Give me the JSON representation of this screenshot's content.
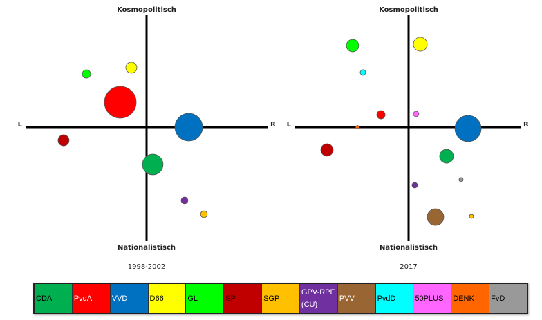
{
  "chart_data": [
    {
      "type": "scatter",
      "subtitle": "1998-2002",
      "axis_labels": {
        "top": "Kosmopolitisch",
        "bottom": "Nationalistisch",
        "left": "L",
        "right": "R"
      },
      "xlim": [
        -10,
        10
      ],
      "ylim": [
        -10,
        10
      ],
      "grid": false,
      "points": [
        {
          "party": "GL",
          "x": -4.97,
          "y": 4.72,
          "size": 9
        },
        {
          "party": "D66",
          "x": -1.26,
          "y": 5.28,
          "size": 16
        },
        {
          "party": "PvdA",
          "x": -2.17,
          "y": 2.21,
          "size": 132
        },
        {
          "party": "VVD",
          "x": 3.49,
          "y": 0,
          "size": 100
        },
        {
          "party": "SP",
          "x": -6.86,
          "y": -1.17,
          "size": 16
        },
        {
          "party": "CDA",
          "x": 0.51,
          "y": -3.31,
          "size": 56
        },
        {
          "party": "GPV-RPF (CU)",
          "x": 3.14,
          "y": -6.5,
          "size": 6
        },
        {
          "party": "SGP",
          "x": 4.74,
          "y": -7.73,
          "size": 6
        }
      ]
    },
    {
      "type": "scatter",
      "subtitle": "2017",
      "axis_labels": {
        "top": "Kosmopolitisch",
        "bottom": "Nationalistisch",
        "left": "L",
        "right": "R"
      },
      "xlim": [
        -10,
        10
      ],
      "ylim": [
        -10,
        10
      ],
      "grid": false,
      "points": [
        {
          "party": "GL",
          "x": -4.97,
          "y": 7.24,
          "size": 20
        },
        {
          "party": "D66",
          "x": 1.04,
          "y": 7.36,
          "size": 25
        },
        {
          "party": "PvdD",
          "x": -4.05,
          "y": 4.85,
          "size": 4
        },
        {
          "party": "PvdA",
          "x": -2.45,
          "y": 1.1,
          "size": 9
        },
        {
          "party": "50PLUS",
          "x": 0.67,
          "y": 1.17,
          "size": 4
        },
        {
          "party": "DENK",
          "x": -4.54,
          "y": 0,
          "size": 1.5
        },
        {
          "party": "VVD",
          "x": 5.28,
          "y": -0.12,
          "size": 90
        },
        {
          "party": "SP",
          "x": -7.24,
          "y": -2.02,
          "size": 20
        },
        {
          "party": "CDA",
          "x": 3.37,
          "y": -2.58,
          "size": 25
        },
        {
          "party": "FvD",
          "x": 4.66,
          "y": -4.66,
          "size": 2.25
        },
        {
          "party": "GPV-RPF (CU)",
          "x": 0.55,
          "y": -5.15,
          "size": 4
        },
        {
          "party": "PVV",
          "x": 2.39,
          "y": -7.98,
          "size": 36
        },
        {
          "party": "SGP",
          "x": 5.58,
          "y": -7.91,
          "size": 2.25
        }
      ]
    }
  ],
  "legend": [
    {
      "label": "CDA",
      "color": "#00b050",
      "text_color": "#000000"
    },
    {
      "label": "PvdA",
      "color": "#ff0000",
      "text_color": "#ffffff"
    },
    {
      "label": "VVD",
      "color": "#0070c0",
      "text_color": "#ffffff"
    },
    {
      "label": "D66",
      "color": "#ffff00",
      "text_color": "#000000"
    },
    {
      "label": "GL",
      "color": "#00ff00",
      "text_color": "#000000"
    },
    {
      "label": "SP",
      "color": "#c00000",
      "text_color": "#300000"
    },
    {
      "label": "SGP",
      "color": "#ffc000",
      "text_color": "#000000"
    },
    {
      "label": "GPV-RPF (CU)",
      "color": "#7030a0",
      "text_color": "#ffffff"
    },
    {
      "label": "PVV",
      "color": "#996633",
      "text_color": "#ffffff"
    },
    {
      "label": "PvdD",
      "color": "#00ffff",
      "text_color": "#000000"
    },
    {
      "label": "50PLUS",
      "color": "#ff66ff",
      "text_color": "#000000"
    },
    {
      "label": "DENK",
      "color": "#ff6600",
      "text_color": "#000000"
    },
    {
      "label": "FvD",
      "color": "#999999",
      "text_color": "#000000"
    }
  ]
}
